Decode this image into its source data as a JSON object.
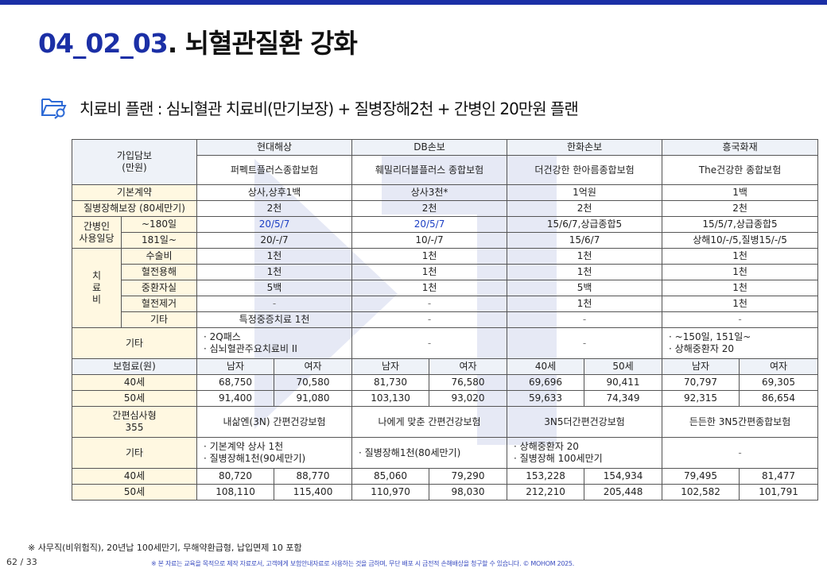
{
  "header": {
    "code": "04_02_03",
    "name": ". 뇌혈관질환 강화"
  },
  "subtitle": "치료비 플랜 : 심뇌혈관 치료비(만기보장) + 질병장해2천 + 간병인 20만원 플랜",
  "colors": {
    "brand": "#1b2fa6",
    "header_fill": "#eef2f8",
    "label_fill": "#fff8e1",
    "blue_text": "#1c3fc4"
  },
  "table": {
    "corner": [
      "가입담보",
      "(만원)"
    ],
    "companies": [
      "현대해상",
      "DB손보",
      "한화손보",
      "흥국화재"
    ],
    "products": [
      "퍼펙트플러스종합보험",
      "훼밀리더블플러스 종합보험",
      "더건강한 한아름종합보험",
      "The건강한 종합보험"
    ],
    "basic_contract": {
      "label": "기본계약",
      "values": [
        "상사,상후1백",
        "상사3천*",
        "1억원",
        "1백"
      ]
    },
    "disability": {
      "label": "질병장해보장 (80세만기)",
      "values": [
        "2천",
        "2천",
        "2천",
        "2천"
      ]
    },
    "caregiver": {
      "label": [
        "간병인",
        "사용일당"
      ],
      "rows": [
        {
          "label": "~180일",
          "values": [
            "20/5/7",
            "20/5/7",
            "15/6/7,상급종합5",
            "15/5/7,상급종합5"
          ]
        },
        {
          "label": "181일~",
          "values": [
            "20/-/7",
            "10/-/7",
            "15/6/7",
            "상해10/-/5,질병15/-/5"
          ]
        }
      ]
    },
    "treatment": {
      "label": [
        "치",
        "료",
        "비"
      ],
      "rows": [
        {
          "label": "수술비",
          "values": [
            "1천",
            "1천",
            "1천",
            "1천"
          ]
        },
        {
          "label": "혈전용해",
          "values": [
            "1천",
            "1천",
            "1천",
            "1천"
          ]
        },
        {
          "label": "중환자실",
          "values": [
            "5백",
            "1천",
            "5백",
            "1천"
          ]
        },
        {
          "label": "혈전제거",
          "values": [
            "-",
            "-",
            "1천",
            "1천"
          ]
        },
        {
          "label": "기타",
          "values": [
            "특정중증치료 1천",
            "-",
            "-",
            "-"
          ]
        }
      ]
    },
    "etc1": {
      "label": "기타",
      "values": [
        [
          "· 2Q패스",
          "· 심뇌혈관주요치료비 II"
        ],
        [
          "-"
        ],
        [
          "-"
        ],
        [
          "· ~150일, 151일~",
          "· 상해중환자 20"
        ]
      ]
    },
    "premium": {
      "label": "보험료(원)",
      "subheads": [
        "남자",
        "여자",
        "남자",
        "여자",
        "40세",
        "50세",
        "남자",
        "여자"
      ],
      "rows": [
        {
          "label": "40세",
          "values": [
            "68,750",
            "70,580",
            "81,730",
            "76,580",
            "69,696",
            "90,411",
            "70,797",
            "69,305"
          ]
        },
        {
          "label": "50세",
          "values": [
            "91,400",
            "91,080",
            "103,130",
            "93,020",
            "59,633",
            "74,349",
            "92,315",
            "86,654"
          ]
        }
      ]
    },
    "simplified": {
      "label": [
        "간편심사형",
        "355"
      ],
      "products": [
        "내삶엔(3N) 간편건강보험",
        "나에게 맞춘 간편건강보험",
        "3N5더간편건강보험",
        "든든한 3N5간편종합보험"
      ]
    },
    "etc2": {
      "label": "기타",
      "values": [
        [
          "· 기본계약 상사 1천",
          "· 질병장해1천(90세만기)"
        ],
        [
          "· 질병장해1천(80세만기)"
        ],
        [
          "· 상해중환자 20",
          "· 질병장해 100세만기"
        ],
        [
          "-"
        ]
      ]
    },
    "premium2": {
      "rows": [
        {
          "label": "40세",
          "values": [
            "80,720",
            "88,770",
            "85,060",
            "79,290",
            "153,228",
            "154,934",
            "79,495",
            "81,477"
          ]
        },
        {
          "label": "50세",
          "values": [
            "108,110",
            "115,400",
            "110,970",
            "98,030",
            "212,210",
            "205,448",
            "102,582",
            "101,791"
          ]
        }
      ]
    }
  },
  "footnote": "※ 사무직(비위험직), 20년납 100세만기, 무해약환급형, 납입면제 10 포함",
  "page": "62 / 33",
  "copyright": "※ 본 자료는 교육을 목적으로 제작 자료로서, 고객에게 보험안내자료로 사용하는 것을 금하며, 무단 배포 시 금전적 손해배상을 청구할 수 있습니다. © MOHOM 2025."
}
